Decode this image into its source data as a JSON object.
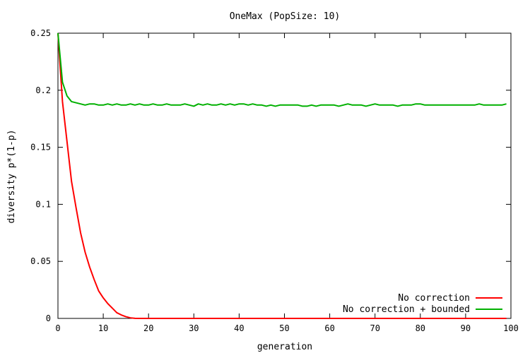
{
  "chart_data": {
    "type": "line",
    "title": "OneMax (PopSize: 10)",
    "xlabel": "generation",
    "ylabel": "diversity p*(1-p)",
    "xlim": [
      0,
      100
    ],
    "ylim": [
      0,
      0.25
    ],
    "xticks": [
      0,
      10,
      20,
      30,
      40,
      50,
      60,
      70,
      80,
      90,
      100
    ],
    "yticks": [
      0,
      0.05,
      0.1,
      0.15,
      0.2,
      0.25
    ],
    "xtick_labels": [
      "0",
      "10",
      "20",
      "30",
      "40",
      "50",
      "60",
      "70",
      "80",
      "90",
      "100"
    ],
    "ytick_labels": [
      "0",
      "0.05",
      "0.1",
      "0.15",
      "0.2",
      "0.25"
    ],
    "grid": false,
    "legend_position": "bottom-right",
    "series": [
      {
        "name": "No correction",
        "color": "#ff0000",
        "x": [
          0,
          1,
          2,
          3,
          4,
          5,
          6,
          7,
          8,
          9,
          10,
          11,
          12,
          13,
          14,
          15,
          16,
          17,
          18,
          20,
          25,
          30,
          40,
          50,
          60,
          70,
          80,
          90,
          99
        ],
        "y": [
          0.25,
          0.19,
          0.155,
          0.12,
          0.097,
          0.075,
          0.058,
          0.045,
          0.034,
          0.024,
          0.018,
          0.013,
          0.009,
          0.005,
          0.003,
          0.0015,
          0.0005,
          0.0001,
          0,
          0,
          0,
          0,
          0,
          0,
          0,
          0,
          0,
          0,
          0
        ]
      },
      {
        "name": "No correction + bounded",
        "color": "#00b000",
        "x": [
          0,
          1,
          2,
          3,
          4,
          5,
          6,
          7,
          8,
          9,
          10,
          11,
          12,
          13,
          14,
          15,
          16,
          17,
          18,
          19,
          20,
          21,
          22,
          23,
          24,
          25,
          26,
          27,
          28,
          29,
          30,
          31,
          32,
          33,
          34,
          35,
          36,
          37,
          38,
          39,
          40,
          41,
          42,
          43,
          44,
          45,
          46,
          47,
          48,
          49,
          50,
          51,
          52,
          53,
          54,
          55,
          56,
          57,
          58,
          59,
          60,
          61,
          62,
          63,
          64,
          65,
          66,
          67,
          68,
          69,
          70,
          71,
          72,
          73,
          74,
          75,
          76,
          77,
          78,
          79,
          80,
          81,
          82,
          83,
          84,
          85,
          86,
          87,
          88,
          89,
          90,
          91,
          92,
          93,
          94,
          95,
          96,
          97,
          98,
          99
        ],
        "y": [
          0.25,
          0.207,
          0.195,
          0.19,
          0.189,
          0.188,
          0.187,
          0.188,
          0.188,
          0.187,
          0.187,
          0.188,
          0.187,
          0.188,
          0.187,
          0.187,
          0.188,
          0.187,
          0.188,
          0.187,
          0.187,
          0.188,
          0.187,
          0.187,
          0.188,
          0.187,
          0.187,
          0.187,
          0.188,
          0.187,
          0.186,
          0.188,
          0.187,
          0.188,
          0.187,
          0.187,
          0.188,
          0.187,
          0.188,
          0.187,
          0.188,
          0.188,
          0.187,
          0.188,
          0.187,
          0.187,
          0.186,
          0.187,
          0.186,
          0.187,
          0.187,
          0.187,
          0.187,
          0.187,
          0.186,
          0.186,
          0.187,
          0.186,
          0.187,
          0.187,
          0.187,
          0.187,
          0.186,
          0.187,
          0.188,
          0.187,
          0.187,
          0.187,
          0.186,
          0.187,
          0.188,
          0.187,
          0.187,
          0.187,
          0.187,
          0.186,
          0.187,
          0.187,
          0.187,
          0.188,
          0.188,
          0.187,
          0.187,
          0.187,
          0.187,
          0.187,
          0.187,
          0.187,
          0.187,
          0.187,
          0.187,
          0.187,
          0.187,
          0.188,
          0.187,
          0.187,
          0.187,
          0.187,
          0.187,
          0.188
        ]
      }
    ]
  }
}
